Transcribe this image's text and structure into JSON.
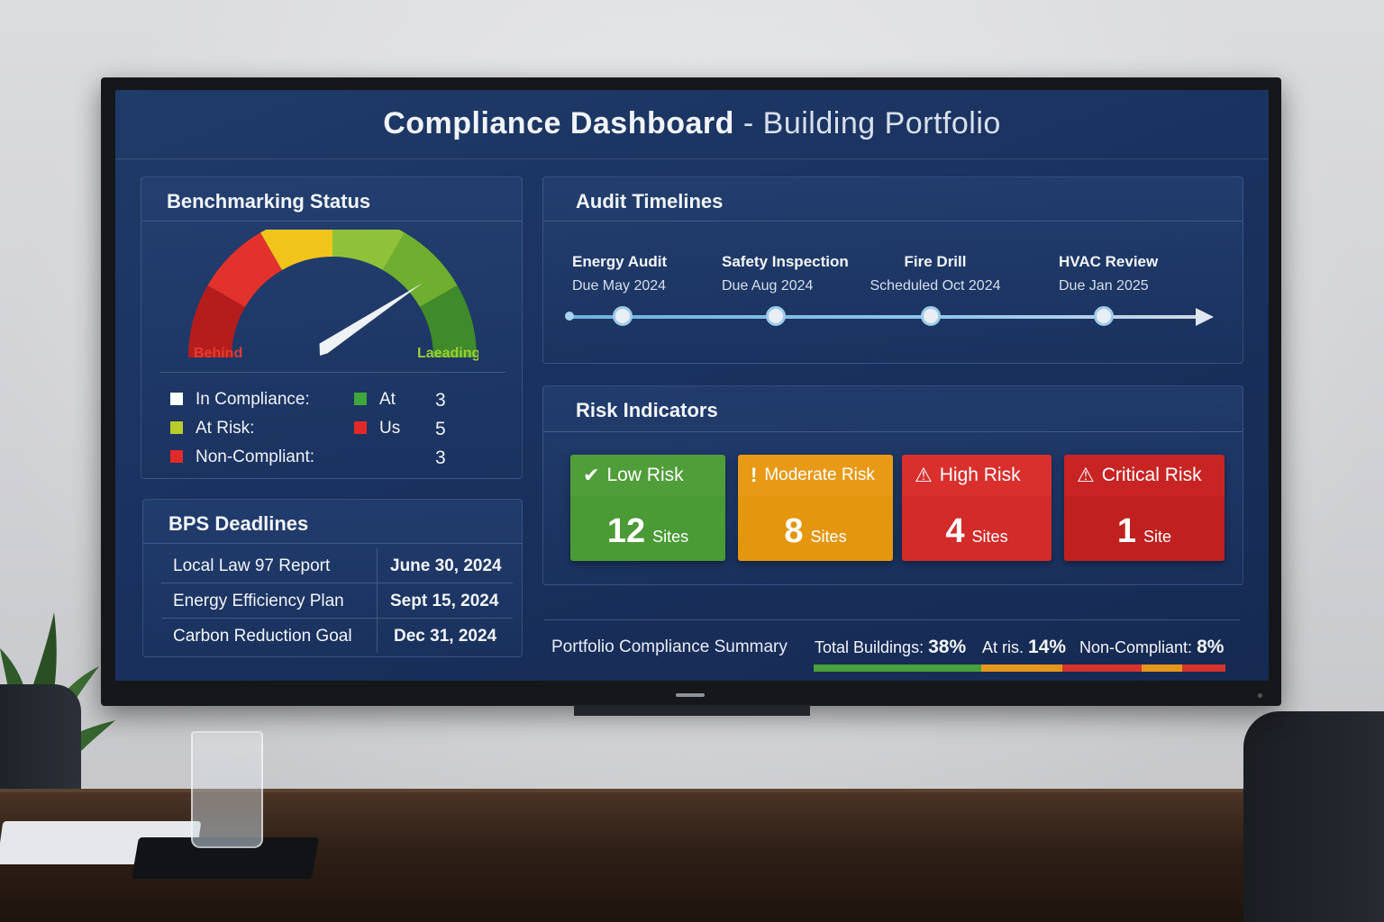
{
  "dashboard": {
    "title_main": "Compliance Dashboard",
    "title_sep": " - ",
    "title_sub": "Building Portfolio"
  },
  "benchmarking": {
    "title": "Benchmarking Status",
    "gauge_left_label": "Behind",
    "gauge_right_label": "Laeading",
    "gauge_level": 0.78,
    "legend_left": [
      {
        "label": "In Compliance:",
        "color": "#ffffff"
      },
      {
        "label": "At Risk:",
        "color": "#b8cc2c"
      },
      {
        "label": "Non-Compliant:",
        "color": "#e02a2a"
      }
    ],
    "legend_right": [
      {
        "label": "At",
        "value": "3",
        "color": "#3ea63a"
      },
      {
        "label": "Us",
        "value": "5",
        "color": "#e02a2a"
      },
      {
        "label": "",
        "value": "3",
        "color": ""
      }
    ]
  },
  "audit": {
    "title": "Audit Timelines",
    "milestones": [
      {
        "name": "Energy Audit",
        "date": "Due May 2024"
      },
      {
        "name": "Safety Inspection",
        "date": "Due Aug 2024"
      },
      {
        "name": "Fire Drill",
        "date": "Scheduled Oct 2024"
      },
      {
        "name": "HVAC Review",
        "date": "Due Jan 2025"
      }
    ]
  },
  "risk": {
    "title": "Risk Indicators",
    "cards": [
      {
        "icon": "✔",
        "label": "Low Risk",
        "value": "12",
        "unit": "Sites",
        "head": "#4f9e3a",
        "body": "#4a9a35"
      },
      {
        "icon": "!",
        "label": "Moderate Risk",
        "value": "8",
        "unit": "Sites",
        "head": "#e89a16",
        "body": "#e4960f"
      },
      {
        "icon": "⚠",
        "label": "High Risk",
        "value": "4",
        "unit": "Sites",
        "head": "#d9302e",
        "body": "#d22b29"
      },
      {
        "icon": "⚠",
        "label": "Critical Risk",
        "value": "1",
        "unit": "Site",
        "head": "#c92424",
        "body": "#c02020"
      }
    ]
  },
  "bps": {
    "title": "BPS Deadlines",
    "rows": [
      {
        "name": "Local Law 97 Report",
        "date": "June 30, 2024"
      },
      {
        "name": "Energy Efficiency Plan",
        "date": "Sept 15, 2024"
      },
      {
        "name": "Carbon Reduction Goal",
        "date": "Dec 31, 2024"
      }
    ]
  },
  "summary": {
    "label": "Portfolio Compliance Summary",
    "total_label": "Total Buildings:",
    "total_value": "38%",
    "atrisk_label": "At ris.",
    "atrisk_value": "14%",
    "noncompliant_label": "Non-Compliant:",
    "noncompliant_value": "8%",
    "colors": {
      "green": "#4aa03a",
      "orange": "#e7961a",
      "red": "#d7332d"
    }
  }
}
